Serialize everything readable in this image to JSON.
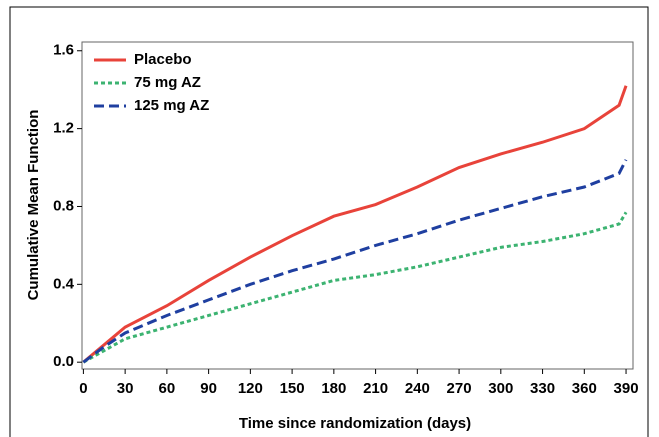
{
  "chart_data": {
    "type": "line",
    "x_label": "Time since randomization (days)",
    "y_label": "Cumulative Mean Function",
    "x": [
      0,
      15,
      30,
      60,
      90,
      120,
      150,
      180,
      210,
      240,
      270,
      300,
      330,
      360,
      385,
      390
    ],
    "series": [
      {
        "name": "Placebo",
        "color": "#e8433a",
        "dash": "solid",
        "values": [
          0,
          0.09,
          0.18,
          0.29,
          0.42,
          0.54,
          0.65,
          0.75,
          0.81,
          0.9,
          1.0,
          1.07,
          1.13,
          1.2,
          1.32,
          1.42
        ]
      },
      {
        "name": "75 mg AZ",
        "color": "#3cb371",
        "dash": "dotted",
        "values": [
          0,
          0.06,
          0.12,
          0.18,
          0.24,
          0.3,
          0.36,
          0.42,
          0.45,
          0.49,
          0.54,
          0.59,
          0.62,
          0.66,
          0.71,
          0.77
        ]
      },
      {
        "name": "125 mg AZ",
        "color": "#1f3fa0",
        "dash": "dashed",
        "values": [
          0,
          0.08,
          0.15,
          0.24,
          0.32,
          0.4,
          0.47,
          0.53,
          0.6,
          0.66,
          0.73,
          0.79,
          0.85,
          0.9,
          0.97,
          1.04
        ]
      }
    ],
    "xlim": [
      -1,
      395
    ],
    "ylim": [
      -0.035,
      1.645
    ],
    "xticks": [
      0,
      30,
      60,
      90,
      120,
      150,
      180,
      210,
      240,
      270,
      300,
      330,
      360,
      390
    ],
    "yticks": [
      {
        "value": 0,
        "label": "0.0"
      },
      0.4,
      0.8,
      1.2,
      1.6
    ],
    "legend": "top-left",
    "grid": false
  }
}
